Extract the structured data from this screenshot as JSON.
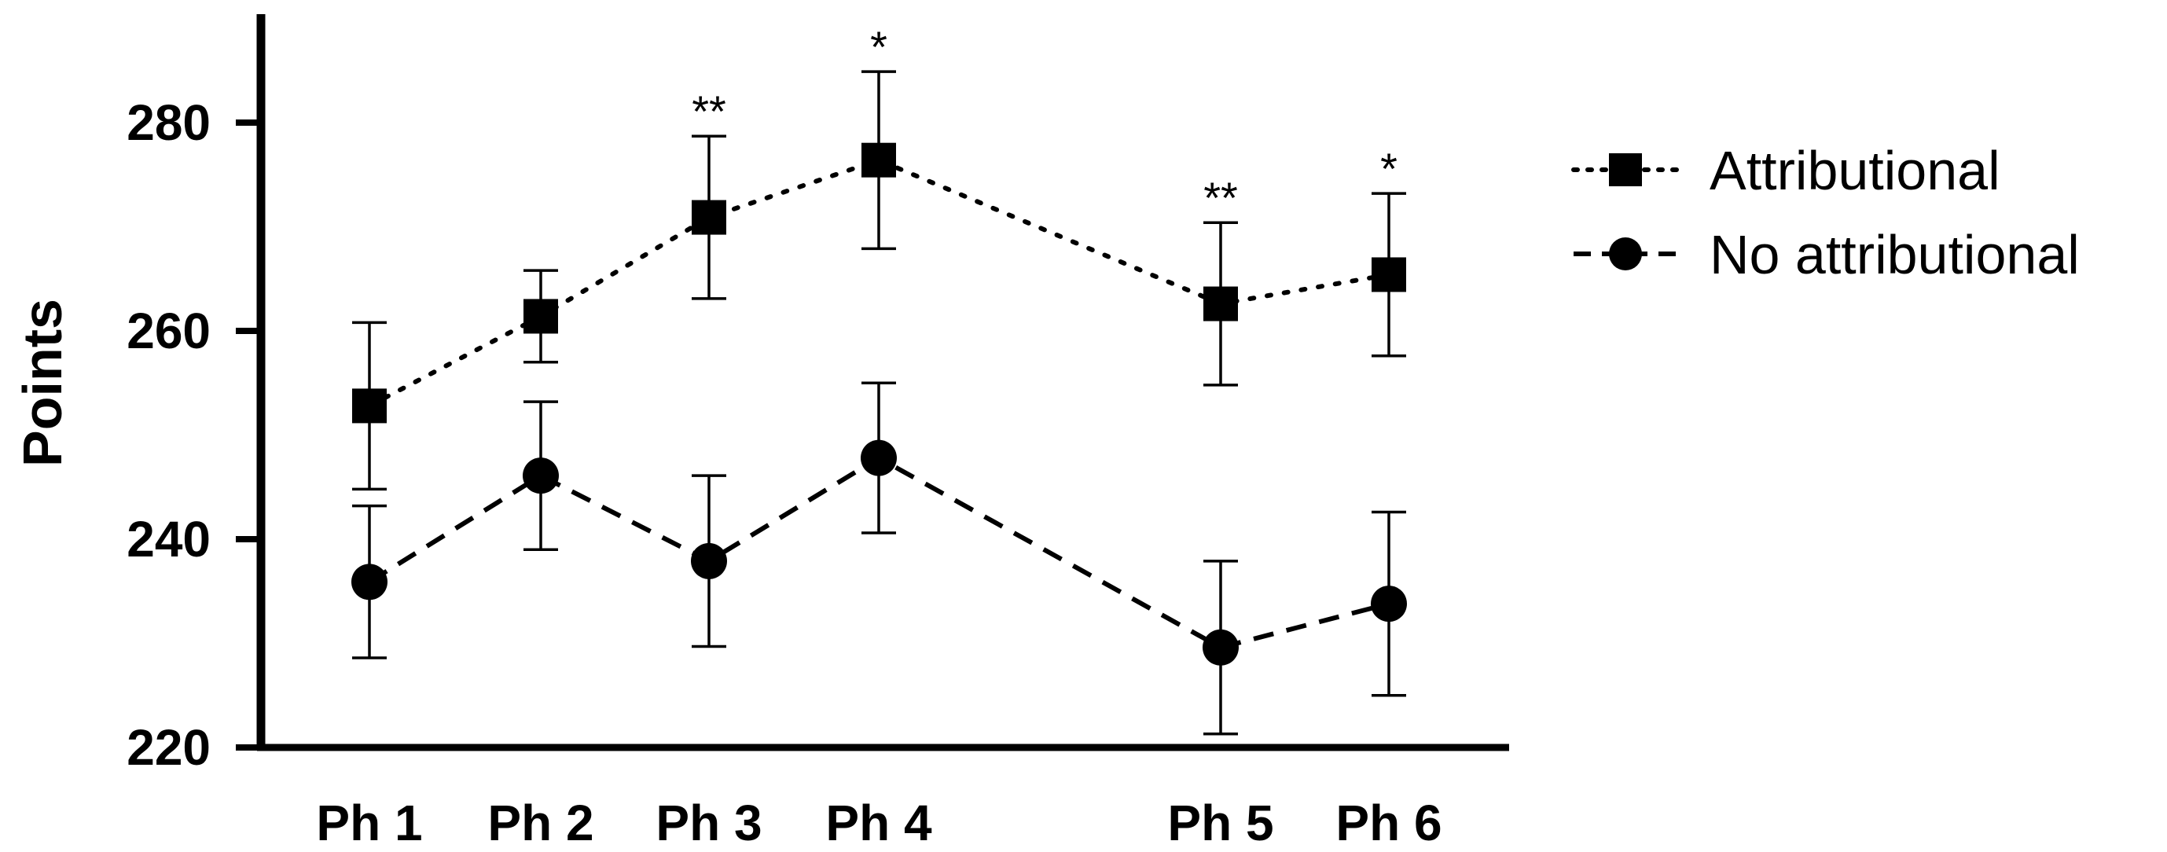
{
  "chart_data": {
    "type": "line",
    "title": "",
    "xlabel": "",
    "ylabel": "Points",
    "ylim": [
      220,
      290
    ],
    "yticks": [
      "220",
      "240",
      "260",
      "280"
    ],
    "categories": [
      "Ph 1",
      "Ph 2",
      "Ph 3",
      "Ph 4",
      "Ph 5",
      "Ph 6"
    ],
    "grid": false,
    "legend_position": "right",
    "series": [
      {
        "name": "Attributional",
        "marker": "square",
        "line_style": "dotted",
        "values": [
          252.8,
          261.4,
          270.9,
          276.4,
          262.6,
          265.4
        ],
        "error": [
          8.0,
          4.4,
          7.8,
          8.5,
          7.8,
          7.8
        ],
        "significance": [
          "",
          "",
          "**",
          "*",
          "**",
          "*"
        ]
      },
      {
        "name": "No attributional",
        "marker": "circle",
        "line_style": "dashed",
        "values": [
          235.9,
          246.1,
          237.9,
          247.8,
          229.6,
          233.8
        ],
        "error": [
          7.3,
          7.1,
          8.2,
          7.2,
          8.3,
          8.8
        ]
      }
    ]
  }
}
